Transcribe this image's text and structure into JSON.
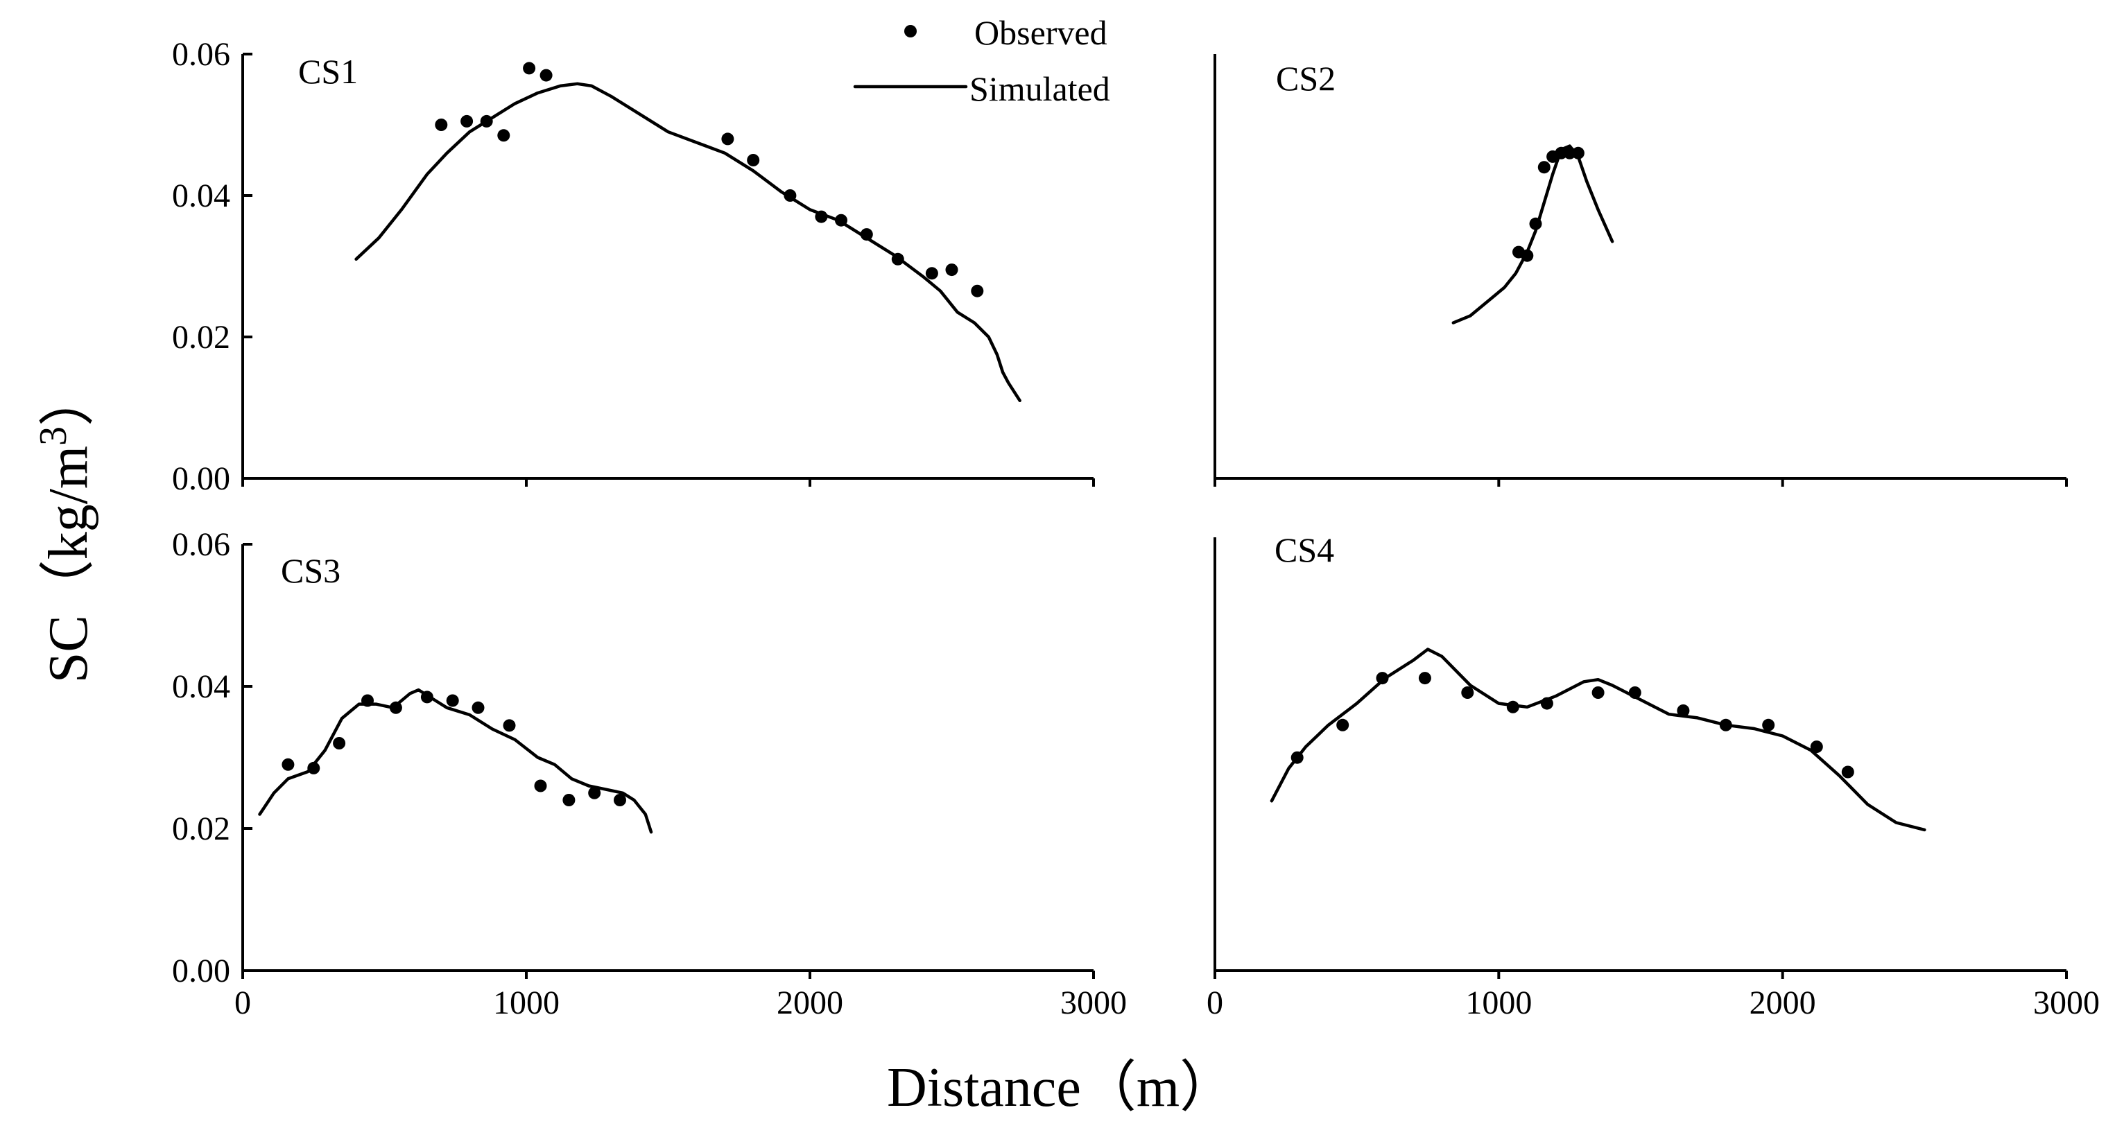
{
  "chart_data": [
    {
      "type": "line",
      "title": "CS1",
      "xlabel": "Distance（m）",
      "ylabel": "SC（kg/m3）",
      "xlim": [
        0,
        3000
      ],
      "ylim": [
        0,
        0.06
      ],
      "yticks": [
        "0.00",
        "0.02",
        "0.04",
        "0.06"
      ],
      "xticks": [],
      "series": [
        {
          "name": "Simulated",
          "kind": "line",
          "x": [
            400,
            480,
            560,
            650,
            720,
            800,
            880,
            960,
            1040,
            1120,
            1180,
            1230,
            1300,
            1400,
            1500,
            1600,
            1700,
            1800,
            1900,
            2000,
            2100,
            2200,
            2300,
            2400,
            2460,
            2520,
            2580,
            2630,
            2660,
            2680,
            2700,
            2740
          ],
          "y": [
            0.031,
            0.034,
            0.038,
            0.043,
            0.046,
            0.049,
            0.051,
            0.053,
            0.0545,
            0.0555,
            0.0558,
            0.0555,
            0.054,
            0.0515,
            0.049,
            0.0475,
            0.046,
            0.0435,
            0.0405,
            0.038,
            0.0365,
            0.034,
            0.0315,
            0.0285,
            0.0265,
            0.0235,
            0.022,
            0.02,
            0.0175,
            0.015,
            0.0135,
            0.011
          ]
        },
        {
          "name": "Observed",
          "kind": "scatter",
          "x": [
            700,
            790,
            860,
            920,
            1010,
            1070,
            1710,
            1800,
            1930,
            2040,
            2110,
            2200,
            2310,
            2430,
            2500,
            2590
          ],
          "y": [
            0.05,
            0.0505,
            0.0505,
            0.0485,
            0.058,
            0.057,
            0.048,
            0.045,
            0.04,
            0.037,
            0.0365,
            0.0345,
            0.031,
            0.029,
            0.0295,
            0.0265
          ]
        }
      ]
    },
    {
      "type": "line",
      "title": "CS2",
      "xlim": [
        0,
        3000
      ],
      "ylim": [
        0,
        0.06
      ],
      "xticks": [],
      "yticks": [],
      "series": [
        {
          "name": "Simulated",
          "kind": "line",
          "x": [
            840,
            900,
            960,
            1020,
            1060,
            1100,
            1130,
            1160,
            1190,
            1220,
            1250,
            1280,
            1310,
            1350,
            1400
          ],
          "y": [
            0.022,
            0.023,
            0.025,
            0.027,
            0.029,
            0.032,
            0.035,
            0.039,
            0.043,
            0.0465,
            0.047,
            0.0455,
            0.042,
            0.038,
            0.0335
          ]
        },
        {
          "name": "Observed",
          "kind": "scatter",
          "x": [
            1070,
            1100,
            1130,
            1160,
            1190,
            1220,
            1250,
            1280
          ],
          "y": [
            0.032,
            0.0315,
            0.036,
            0.044,
            0.0455,
            0.046,
            0.046,
            0.046
          ]
        }
      ]
    },
    {
      "type": "line",
      "title": "CS3",
      "xlim": [
        0,
        3000
      ],
      "ylim": [
        0,
        0.06
      ],
      "xticks": [
        "0",
        "1000",
        "2000",
        "3000"
      ],
      "yticks": [
        "0.00",
        "0.02",
        "0.04",
        "0.06"
      ],
      "series": [
        {
          "name": "Simulated",
          "kind": "line",
          "x": [
            60,
            110,
            160,
            230,
            290,
            350,
            410,
            470,
            530,
            590,
            620,
            660,
            720,
            800,
            880,
            960,
            1040,
            1100,
            1160,
            1220,
            1280,
            1340,
            1380,
            1420,
            1440
          ],
          "y": [
            0.022,
            0.025,
            0.027,
            0.028,
            0.031,
            0.0355,
            0.0375,
            0.0375,
            0.037,
            0.039,
            0.0395,
            0.0385,
            0.037,
            0.036,
            0.034,
            0.0325,
            0.03,
            0.029,
            0.027,
            0.026,
            0.0255,
            0.025,
            0.024,
            0.022,
            0.0195
          ]
        },
        {
          "name": "Observed",
          "kind": "scatter",
          "x": [
            160,
            250,
            340,
            440,
            540,
            650,
            740,
            830,
            940,
            1050,
            1150,
            1240,
            1330
          ],
          "y": [
            0.029,
            0.0285,
            0.032,
            0.038,
            0.037,
            0.0385,
            0.038,
            0.037,
            0.0345,
            0.026,
            0.024,
            0.025,
            0.024
          ]
        }
      ]
    },
    {
      "type": "line",
      "title": "CS4",
      "xlim": [
        0,
        3000
      ],
      "ylim": [
        0,
        0.06
      ],
      "xticks": [
        "0",
        "1000",
        "2000",
        "3000"
      ],
      "yticks": [],
      "series": [
        {
          "name": "Simulated",
          "kind": "line",
          "x": [
            200,
            260,
            320,
            400,
            500,
            600,
            700,
            750,
            800,
            900,
            1000,
            1100,
            1200,
            1300,
            1350,
            1400,
            1500,
            1600,
            1700,
            1800,
            1900,
            2000,
            2100,
            2200,
            2300,
            2400,
            2500
          ],
          "y": [
            0.0235,
            0.028,
            0.031,
            0.034,
            0.037,
            0.0405,
            0.043,
            0.0445,
            0.0435,
            0.0395,
            0.037,
            0.0365,
            0.038,
            0.04,
            0.0403,
            0.0395,
            0.0375,
            0.0355,
            0.035,
            0.034,
            0.0335,
            0.0325,
            0.0305,
            0.027,
            0.023,
            0.0205,
            0.0195
          ]
        },
        {
          "name": "Observed",
          "kind": "scatter",
          "x": [
            290,
            450,
            590,
            740,
            890,
            1050,
            1170,
            1350,
            1480,
            1650,
            1800,
            1950,
            2120,
            2230
          ],
          "y": [
            0.0295,
            0.034,
            0.0405,
            0.0405,
            0.0385,
            0.0365,
            0.037,
            0.0385,
            0.0385,
            0.036,
            0.034,
            0.034,
            0.031,
            0.0275
          ]
        }
      ]
    }
  ],
  "legend": {
    "observed_label": "Observed",
    "simulated_label": "Simulated"
  },
  "axes": {
    "ylabel_prefix": "SC（kg/m",
    "ylabel_superscript": "3",
    "ylabel_suffix": "）",
    "xlabel": "Distance（m）"
  }
}
